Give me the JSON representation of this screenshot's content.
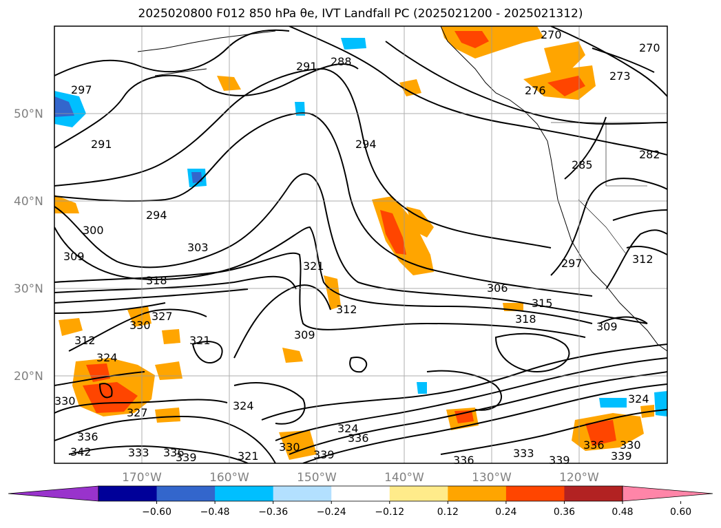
{
  "title": "2025020800 F012 850 hPa θe, IVT Landfall PC (2025021200 - 2025021312)",
  "map": {
    "lat_labels": [
      "50°N",
      "40°N",
      "30°N",
      "20°N"
    ],
    "lon_labels": [
      "170°W",
      "160°W",
      "150°W",
      "140°W",
      "130°W",
      "120°W"
    ],
    "contour_labels": [
      "297",
      "291",
      "291",
      "288",
      "270",
      "273",
      "270",
      "276",
      "294",
      "285",
      "282",
      "294",
      "300",
      "303",
      "309",
      "318",
      "321",
      "306",
      "315",
      "312",
      "297",
      "312",
      "318",
      "309",
      "330",
      "327",
      "321",
      "324",
      "309",
      "312",
      "324",
      "330",
      "327",
      "324",
      "324",
      "336",
      "336",
      "342",
      "333",
      "336",
      "339",
      "321",
      "330",
      "339",
      "336",
      "333",
      "339",
      "336",
      "330",
      "339"
    ]
  },
  "colorbar": {
    "ticks": [
      "−0.60",
      "−0.48",
      "−0.36",
      "−0.24",
      "−0.12",
      "0.12",
      "0.24",
      "0.36",
      "0.48",
      "0.60"
    ],
    "colors": [
      "#9933cc",
      "#000099",
      "#3366cc",
      "#00bfff",
      "#b3e0ff",
      "#ffffff",
      "#ffeb8a",
      "#ffa500",
      "#ff4500",
      "#b22222",
      "#ff85a8"
    ]
  }
}
